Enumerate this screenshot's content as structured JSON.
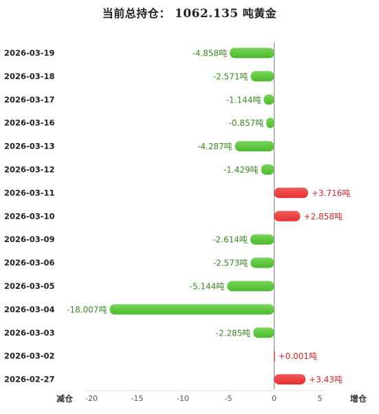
{
  "title": {
    "prefix": "当前总持仓：",
    "total": "1062.135",
    "suffix": "吨黄金"
  },
  "colors": {
    "positive": "#e83030",
    "negative": "#4cb82e",
    "positive_text": "#d62828",
    "negative_text": "#3a8a22"
  },
  "axis_end_labels": {
    "left": "减仓",
    "right": "增仓"
  },
  "chart_data": {
    "type": "bar",
    "orientation": "horizontal",
    "categories": [
      "2026-03-19",
      "2026-03-18",
      "2026-03-17",
      "2026-03-16",
      "2026-03-13",
      "2026-03-12",
      "2026-03-11",
      "2026-03-10",
      "2026-03-09",
      "2026-03-06",
      "2026-03-05",
      "2026-03-04",
      "2026-03-03",
      "2026-03-02",
      "2026-02-27"
    ],
    "values": [
      -4.858,
      -2.571,
      -1.144,
      -0.857,
      -4.287,
      -1.429,
      3.716,
      2.858,
      -2.614,
      -2.573,
      -5.144,
      -18.007,
      -2.285,
      0.001,
      3.43
    ],
    "data_labels": [
      "-4.858吨",
      "-2.571吨",
      "-1.144吨",
      "-0.857吨",
      "-4.287吨",
      "-1.429吨",
      "+3.716吨",
      "+2.858吨",
      "-2.614吨",
      "-2.573吨",
      "-5.144吨",
      "-18.007吨",
      "-2.285吨",
      "+0.001吨",
      "+3.43吨"
    ],
    "xlim": [
      -20,
      5
    ],
    "xticks": [
      -20,
      -15,
      -10,
      -5,
      0,
      5
    ],
    "grid": false
  }
}
